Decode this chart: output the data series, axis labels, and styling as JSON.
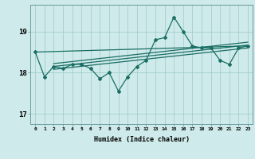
{
  "x": [
    0,
    1,
    2,
    3,
    4,
    5,
    6,
    7,
    8,
    9,
    10,
    11,
    12,
    13,
    14,
    15,
    16,
    17,
    18,
    19,
    20,
    21,
    22,
    23
  ],
  "y_main": [
    18.5,
    17.9,
    18.15,
    18.1,
    18.2,
    18.2,
    18.1,
    17.85,
    18.0,
    17.55,
    17.9,
    18.15,
    18.3,
    18.8,
    18.85,
    19.35,
    19.0,
    18.65,
    18.6,
    18.6,
    18.3,
    18.2,
    18.6,
    18.65
  ],
  "trend_lines": [
    {
      "x_start": 0,
      "x_end": 23,
      "y_start": 18.5,
      "y_end": 18.65
    },
    {
      "x_start": 2,
      "x_end": 23,
      "y_start": 18.08,
      "y_end": 18.6
    },
    {
      "x_start": 2,
      "x_end": 23,
      "y_start": 18.15,
      "y_end": 18.67
    },
    {
      "x_start": 2,
      "x_end": 23,
      "y_start": 18.22,
      "y_end": 18.74
    }
  ],
  "bg_color": "#ceeaea",
  "line_color": "#1a6e64",
  "grid_color": "#9ec8c8",
  "ylabel_ticks": [
    17,
    18,
    19
  ],
  "xlabel": "Humidex (Indice chaleur)",
  "xlim": [
    -0.5,
    23.5
  ],
  "ylim": [
    16.75,
    19.65
  ],
  "xtick_labels": [
    "0",
    "1",
    "2",
    "3",
    "4",
    "5",
    "6",
    "7",
    "8",
    "9",
    "10",
    "11",
    "12",
    "13",
    "14",
    "15",
    "16",
    "17",
    "18",
    "19",
    "20",
    "21",
    "22",
    "23"
  ]
}
